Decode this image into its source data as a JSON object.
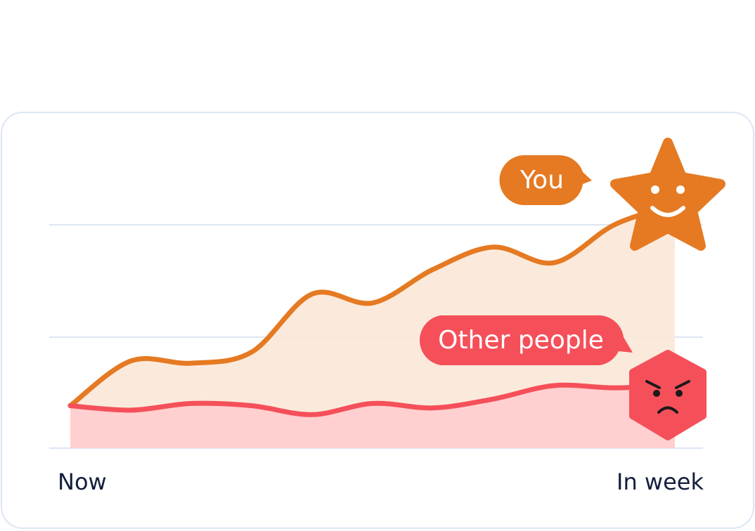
{
  "chart_data": {
    "type": "line",
    "categories": [
      "Now",
      null,
      null,
      null,
      null,
      null,
      null,
      null,
      null,
      null,
      "In week"
    ],
    "ylim": [
      0,
      100
    ],
    "grid": true,
    "series": [
      {
        "name": "You",
        "color": "#e57a22",
        "values": [
          19,
          39,
          38,
          43,
          69,
          65,
          80,
          90,
          83,
          100,
          109
        ]
      },
      {
        "name": "Other people",
        "color": "#f5505a",
        "values": [
          19,
          17,
          20,
          19,
          15,
          20,
          18,
          22,
          28,
          27,
          28
        ]
      }
    ]
  }
}
